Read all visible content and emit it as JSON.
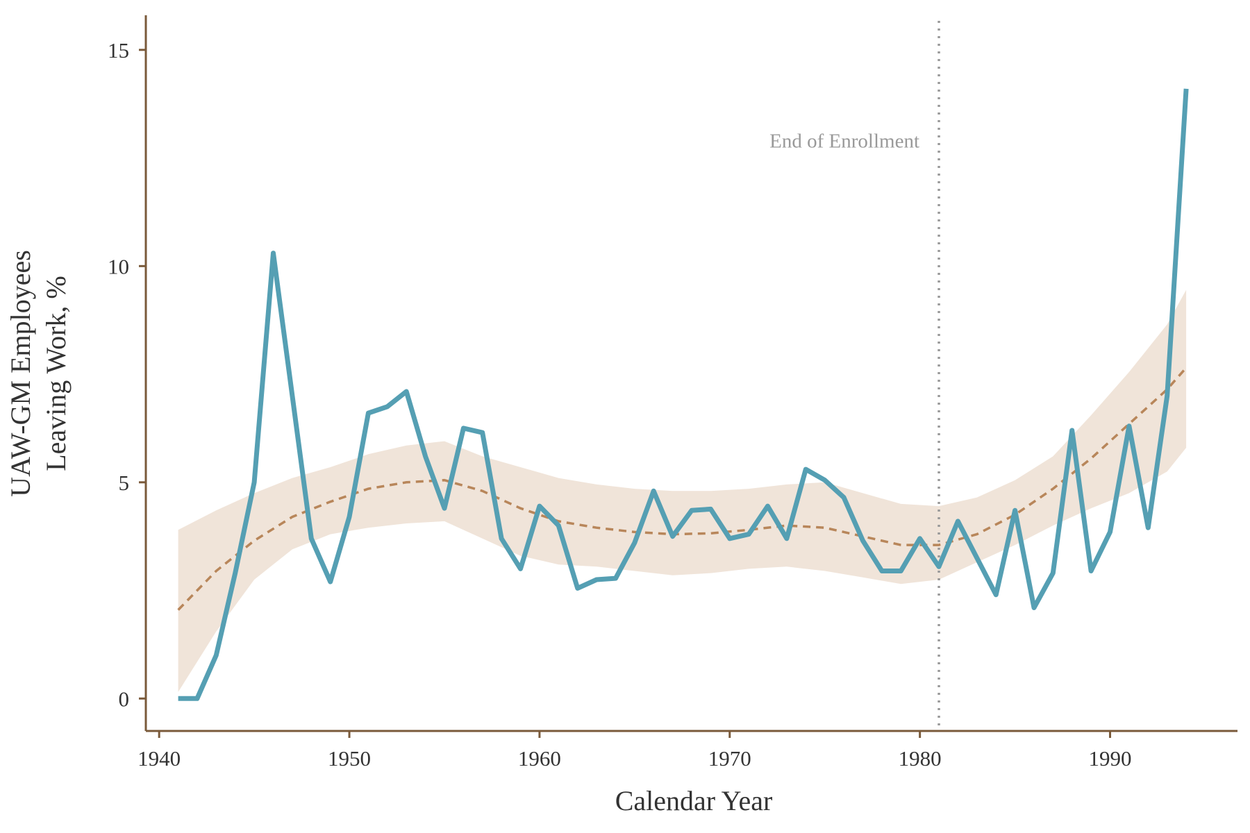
{
  "chart_data": {
    "type": "line",
    "xlabel": "Calendar Year",
    "ylabel_lines": [
      "UAW-GM Employees",
      "Leaving Work, %"
    ],
    "xlim": [
      1939.3,
      1996.7
    ],
    "ylim": [
      -0.75,
      15.8
    ],
    "x_ticks": [
      1940,
      1950,
      1960,
      1970,
      1980,
      1990
    ],
    "y_ticks": [
      0,
      5,
      10,
      15
    ],
    "grid": false,
    "annotation": {
      "text": "End of Enrollment",
      "x": 1981
    },
    "colors": {
      "series": "#559fb3",
      "trend": "#b8865a",
      "band": "#f0e4d9",
      "axis": "#7a5a3a",
      "reference_line": "#999999"
    },
    "series": [
      {
        "x": [
          1941,
          1942,
          1943,
          1944,
          1945,
          1946,
          1947,
          1948,
          1949,
          1950,
          1951,
          1952,
          1953,
          1954,
          1955,
          1956,
          1957,
          1958,
          1959,
          1960,
          1961,
          1962,
          1963,
          1964,
          1965,
          1966,
          1967,
          1968,
          1969,
          1970,
          1971,
          1972,
          1973,
          1974,
          1975,
          1976,
          1977,
          1978,
          1979,
          1980,
          1981,
          1982,
          1983,
          1984,
          1985,
          1986,
          1987,
          1988,
          1989,
          1990,
          1991,
          1992,
          1993,
          1994
        ],
        "y": [
          0,
          0,
          1.0,
          2.9,
          5.0,
          10.3,
          7.0,
          3.7,
          2.7,
          4.2,
          6.6,
          6.75,
          7.1,
          5.6,
          4.4,
          6.25,
          6.15,
          3.7,
          3.0,
          4.45,
          4.0,
          2.55,
          2.75,
          2.78,
          3.6,
          4.8,
          3.75,
          4.35,
          4.38,
          3.7,
          3.8,
          4.45,
          3.7,
          5.3,
          5.05,
          4.65,
          3.65,
          2.95,
          2.95,
          3.7,
          3.05,
          4.1,
          3.25,
          2.4,
          4.35,
          2.1,
          2.9,
          6.2,
          2.95,
          3.85,
          6.3,
          3.95,
          7.0,
          14.1
        ]
      },
      {
        "kind": "smoothed trend with confidence band",
        "x": [
          1941,
          1943,
          1945,
          1947,
          1949,
          1951,
          1953,
          1955,
          1957,
          1959,
          1961,
          1963,
          1965,
          1967,
          1969,
          1971,
          1973,
          1975,
          1977,
          1979,
          1981,
          1983,
          1985,
          1987,
          1989,
          1991,
          1993,
          1994
        ],
        "y": [
          2.05,
          2.95,
          3.65,
          4.2,
          4.55,
          4.85,
          5.0,
          5.05,
          4.8,
          4.4,
          4.1,
          3.95,
          3.85,
          3.8,
          3.82,
          3.9,
          4.0,
          3.95,
          3.75,
          3.55,
          3.55,
          3.8,
          4.25,
          4.85,
          5.55,
          6.35,
          7.15,
          7.65
        ],
        "lower": [
          0.15,
          1.55,
          2.75,
          3.45,
          3.8,
          3.95,
          4.05,
          4.1,
          3.7,
          3.3,
          3.1,
          3.05,
          2.95,
          2.85,
          2.9,
          3.0,
          3.05,
          2.95,
          2.8,
          2.65,
          2.75,
          3.15,
          3.55,
          4.0,
          4.4,
          4.75,
          5.25,
          5.8
        ],
        "upper": [
          3.9,
          4.35,
          4.75,
          5.1,
          5.35,
          5.65,
          5.85,
          5.95,
          5.6,
          5.35,
          5.1,
          4.95,
          4.85,
          4.8,
          4.8,
          4.85,
          4.95,
          5.0,
          4.75,
          4.5,
          4.45,
          4.65,
          5.05,
          5.6,
          6.55,
          7.55,
          8.65,
          9.45
        ]
      }
    ]
  }
}
